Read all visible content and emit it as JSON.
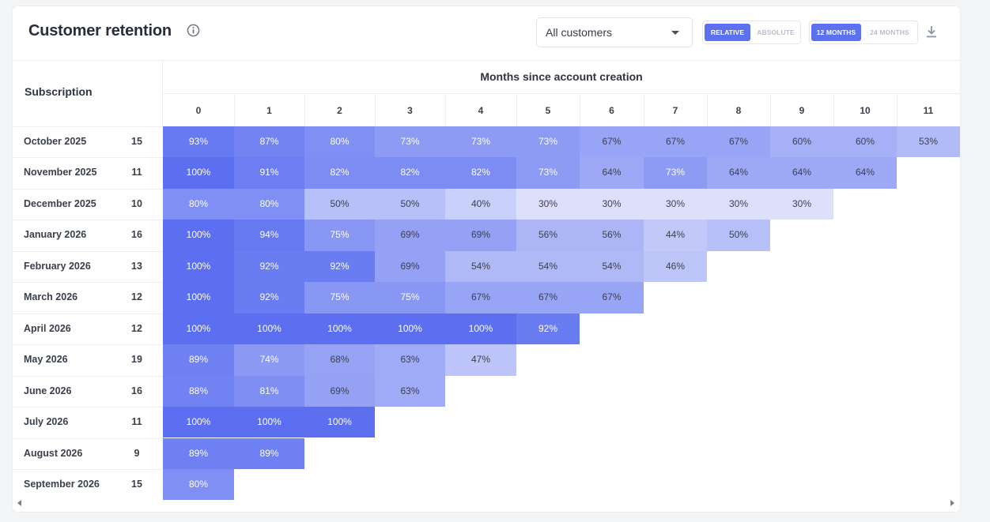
{
  "header": {
    "title": "Customer retention",
    "info_icon": "info-circle-icon",
    "segment_select": {
      "value": "All customers",
      "icon": "caret-down-icon"
    },
    "mode_toggle": {
      "options": [
        "RELATIVE",
        "ABSOLUTE"
      ],
      "selected": "RELATIVE"
    },
    "range_toggle": {
      "options": [
        "12 MONTHS",
        "24 MONTHS"
      ],
      "selected": "12 MONTHS"
    },
    "download_icon": "download-icon"
  },
  "table": {
    "row_header": "Subscription",
    "column_group_header": "Months since account creation",
    "columns": [
      "0",
      "1",
      "2",
      "3",
      "4",
      "5",
      "6",
      "7",
      "8",
      "9",
      "10",
      "11"
    ],
    "rows": [
      {
        "label": "October 2025",
        "count": "15",
        "values": [
          "93%",
          "87%",
          "80%",
          "73%",
          "73%",
          "73%",
          "67%",
          "67%",
          "67%",
          "60%",
          "60%",
          "53%"
        ]
      },
      {
        "label": "November 2025",
        "count": "11",
        "values": [
          "100%",
          "91%",
          "82%",
          "82%",
          "82%",
          "73%",
          "64%",
          "73%",
          "64%",
          "64%",
          "64%"
        ]
      },
      {
        "label": "December 2025",
        "count": "10",
        "values": [
          "80%",
          "80%",
          "50%",
          "50%",
          "40%",
          "30%",
          "30%",
          "30%",
          "30%",
          "30%"
        ]
      },
      {
        "label": "January 2026",
        "count": "16",
        "values": [
          "100%",
          "94%",
          "75%",
          "69%",
          "69%",
          "56%",
          "56%",
          "44%",
          "50%"
        ]
      },
      {
        "label": "February 2026",
        "count": "13",
        "values": [
          "100%",
          "92%",
          "92%",
          "69%",
          "54%",
          "54%",
          "54%",
          "46%"
        ]
      },
      {
        "label": "March 2026",
        "count": "12",
        "values": [
          "100%",
          "92%",
          "75%",
          "75%",
          "67%",
          "67%",
          "67%"
        ]
      },
      {
        "label": "April 2026",
        "count": "12",
        "values": [
          "100%",
          "100%",
          "100%",
          "100%",
          "100%",
          "92%"
        ]
      },
      {
        "label": "May 2026",
        "count": "19",
        "values": [
          "89%",
          "74%",
          "68%",
          "63%",
          "47%"
        ]
      },
      {
        "label": "June 2026",
        "count": "16",
        "values": [
          "88%",
          "81%",
          "69%",
          "63%"
        ]
      },
      {
        "label": "July 2026",
        "count": "11",
        "values": [
          "100%",
          "100%",
          "100%"
        ]
      },
      {
        "label": "August 2026",
        "count": "9",
        "values": [
          "89%",
          "89%"
        ]
      },
      {
        "label": "September 2026",
        "count": "15",
        "values": [
          "80%"
        ]
      }
    ]
  },
  "colors": {
    "accent": "#5c71f0",
    "heat_full": "#5b6ff0",
    "heat_empty": "#eef0fd",
    "text_dark": "#2b2f3a"
  },
  "scroll": {
    "left_icon": "arrow-left-icon",
    "right_icon": "arrow-right-icon"
  }
}
